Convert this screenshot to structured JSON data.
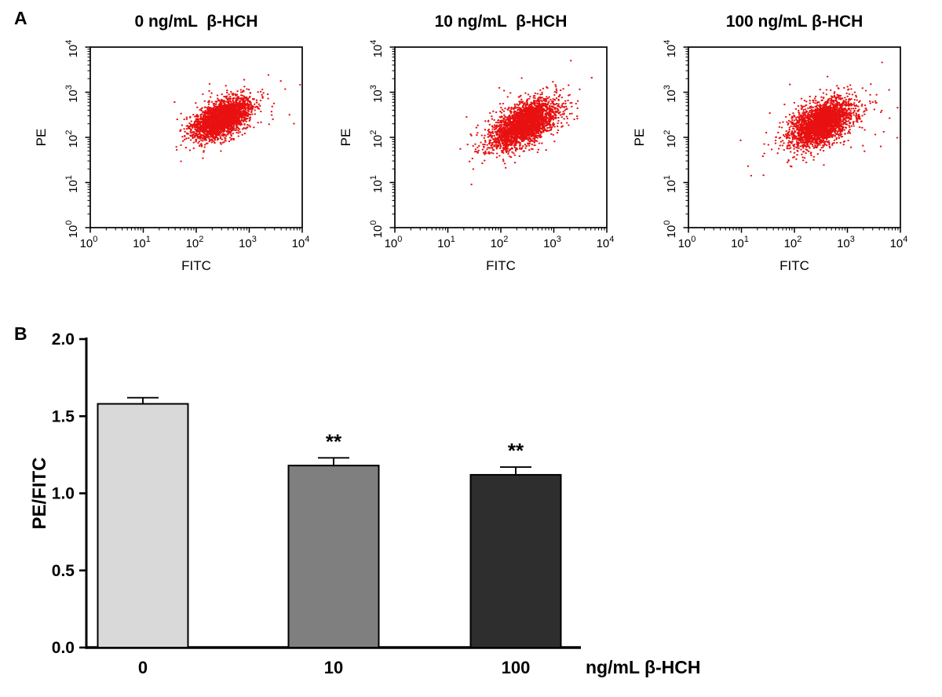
{
  "figure": {
    "panel_a": "A",
    "panel_b": "B"
  },
  "colors": {
    "scatter_point": "#e81010",
    "axis": "#000000"
  },
  "chart_data": [
    {
      "type": "scatter",
      "panel": "A1",
      "title": "0 ng/mL  β-HCH",
      "xlabel": "FITC",
      "ylabel": "PE",
      "xscale": "log",
      "yscale": "log",
      "xlim": [
        1,
        10000
      ],
      "ylim": [
        1,
        10000
      ],
      "tick_decades": [
        0,
        1,
        2,
        3,
        4
      ],
      "point_color": "#e81010",
      "cluster": {
        "n": 2800,
        "center_log_x": 2.48,
        "center_log_y": 2.42,
        "sd_log_x": 0.26,
        "sd_log_y": 0.22,
        "correlation": 0.55,
        "seed": 11
      }
    },
    {
      "type": "scatter",
      "panel": "A2",
      "title": "10 ng/mL  β-HCH",
      "xlabel": "FITC",
      "ylabel": "PE",
      "xscale": "log",
      "yscale": "log",
      "xlim": [
        1,
        10000
      ],
      "ylim": [
        1,
        10000
      ],
      "tick_decades": [
        0,
        1,
        2,
        3,
        4
      ],
      "point_color": "#e81010",
      "cluster": {
        "n": 2800,
        "center_log_x": 2.42,
        "center_log_y": 2.28,
        "sd_log_x": 0.3,
        "sd_log_y": 0.26,
        "correlation": 0.55,
        "seed": 23
      }
    },
    {
      "type": "scatter",
      "panel": "A3",
      "title": "100 ng/mL β-HCH",
      "xlabel": "FITC",
      "ylabel": "PE",
      "xscale": "log",
      "yscale": "log",
      "xlim": [
        1,
        10000
      ],
      "ylim": [
        1,
        10000
      ],
      "tick_decades": [
        0,
        1,
        2,
        3,
        4
      ],
      "point_color": "#e81010",
      "cluster": {
        "n": 2800,
        "center_log_x": 2.52,
        "center_log_y": 2.32,
        "sd_log_x": 0.3,
        "sd_log_y": 0.26,
        "correlation": 0.5,
        "seed": 37
      }
    },
    {
      "type": "bar",
      "panel": "B",
      "categories": [
        "0",
        "10",
        "100"
      ],
      "values": [
        1.58,
        1.18,
        1.12
      ],
      "errors": [
        0.04,
        0.05,
        0.05
      ],
      "significance": [
        "",
        "**",
        "**"
      ],
      "ylabel": "PE/FITC",
      "x_unit_label": "ng/mL  β-HCH",
      "ylim": [
        0,
        2.0
      ],
      "yticks": [
        0.0,
        0.5,
        1.0,
        1.5,
        2.0
      ],
      "bar_colors": [
        "#d9d9d9",
        "#7f7f7f",
        "#2e2e2e"
      ],
      "bar_border": "#000000",
      "legend": "none",
      "grid": false
    }
  ]
}
